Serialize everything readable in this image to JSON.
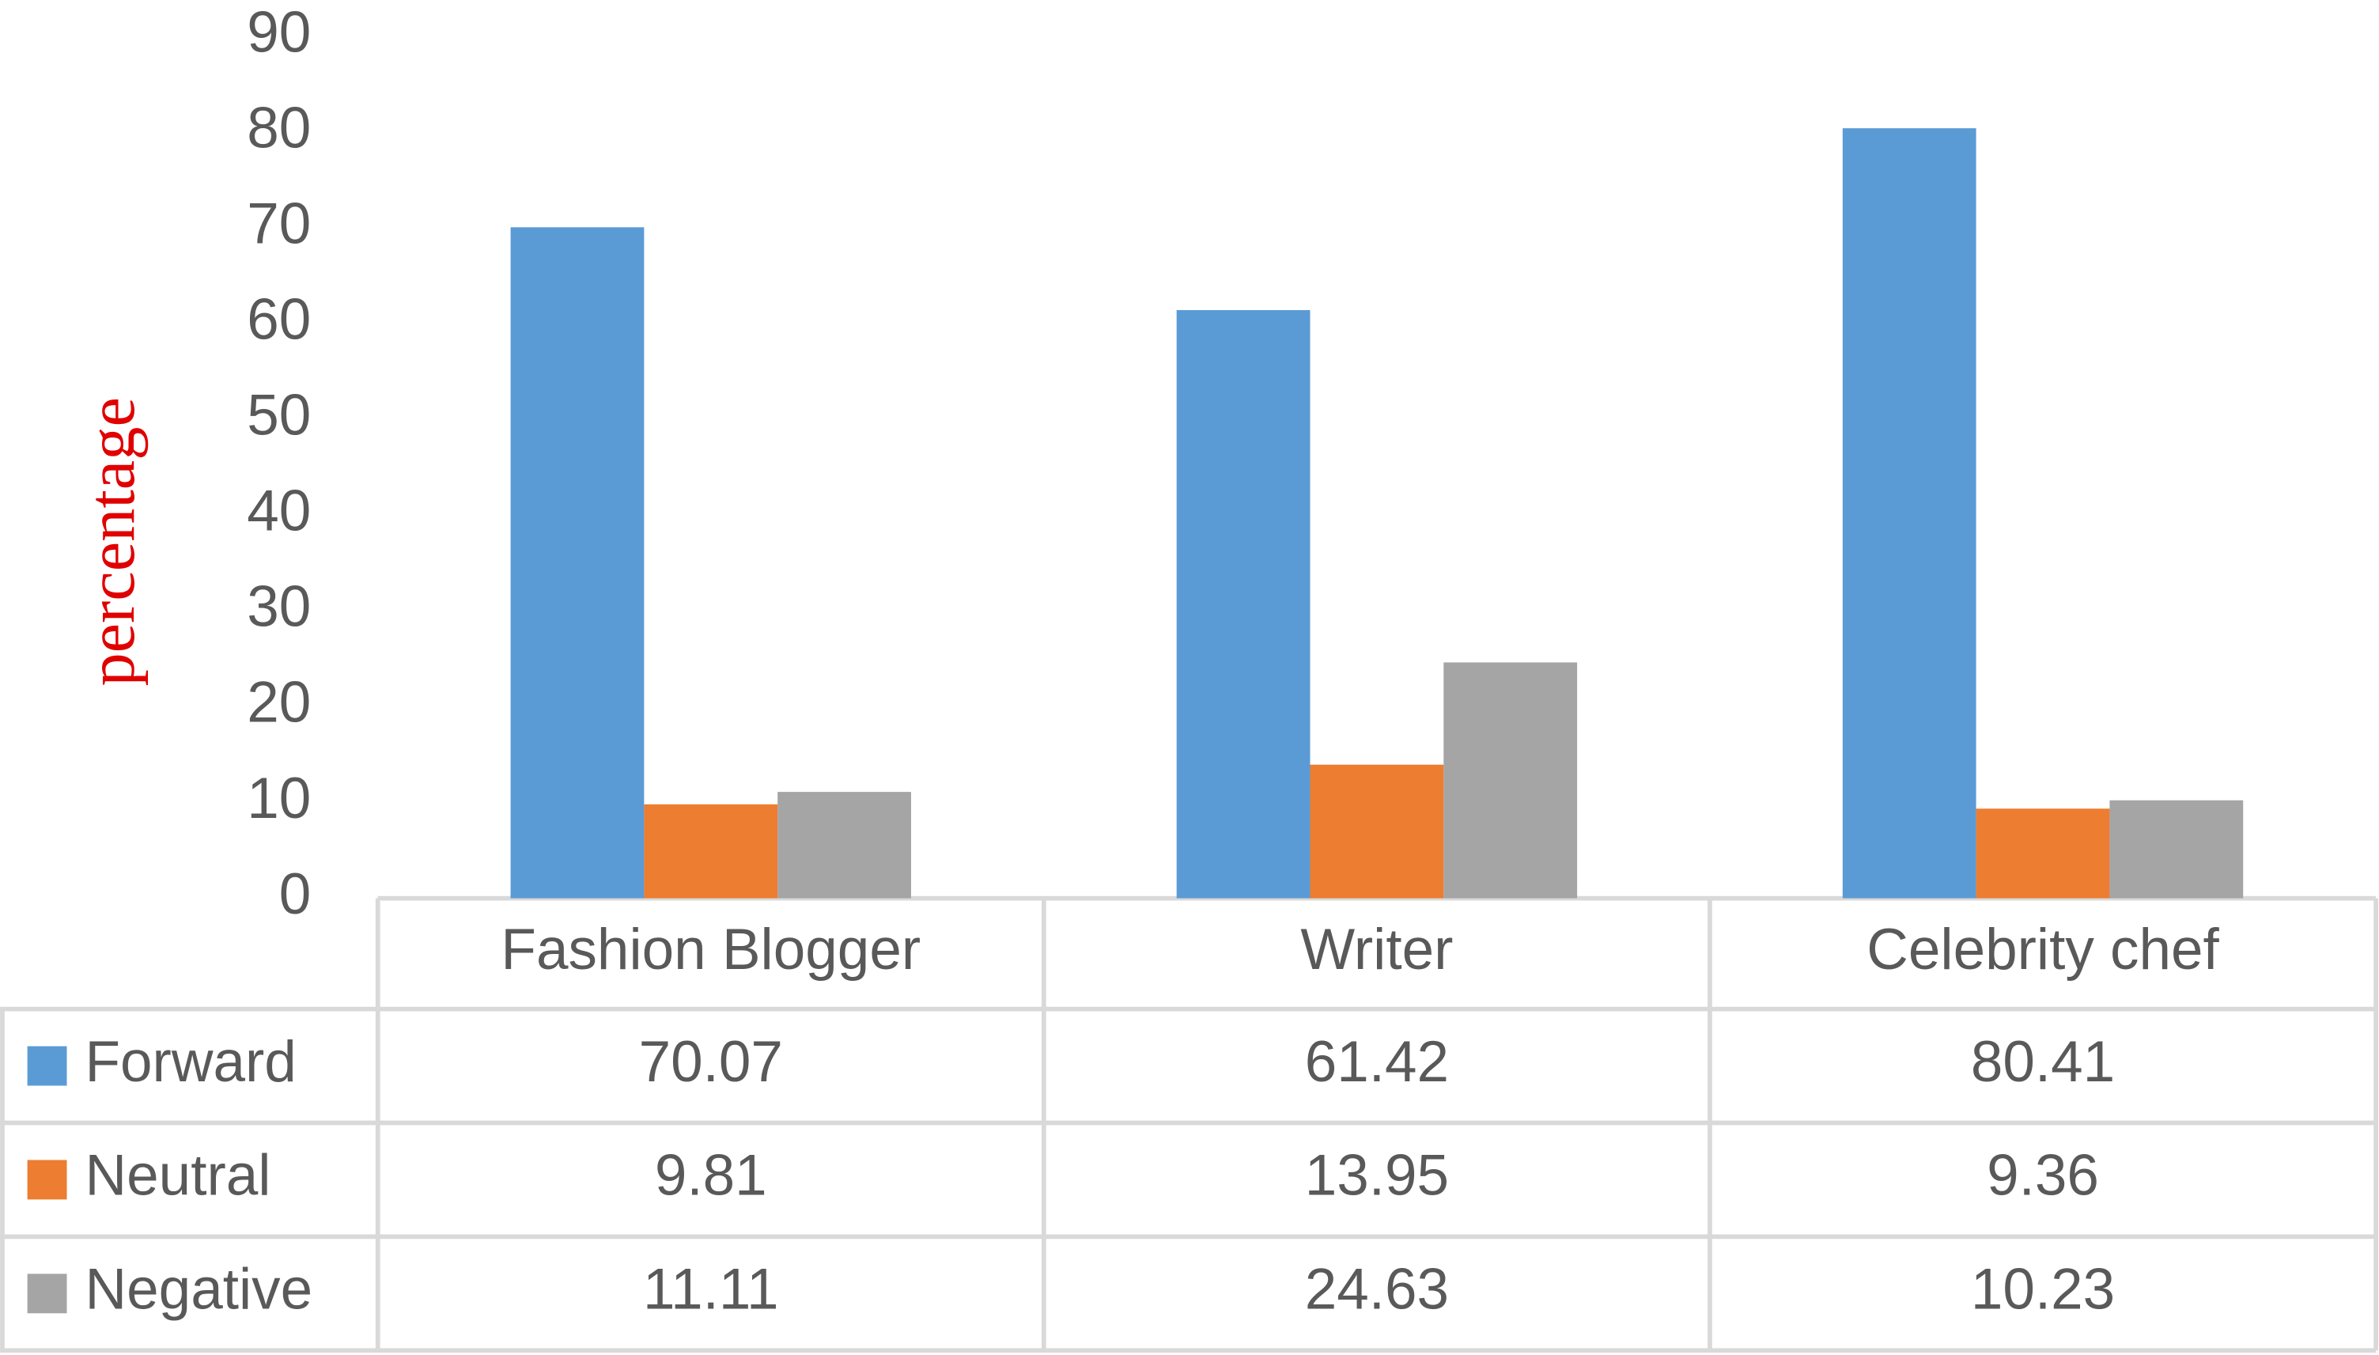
{
  "chart_data": {
    "type": "bar",
    "y_label": "percentage",
    "categories": [
      "Fashion Blogger",
      "Writer",
      "Celebrity chef"
    ],
    "series": [
      {
        "name": "Forward",
        "color": "#5b9bd5",
        "values": [
          70.07,
          61.42,
          80.41
        ]
      },
      {
        "name": "Neutral",
        "color": "#ed7d31",
        "values": [
          9.81,
          13.95,
          9.36
        ]
      },
      {
        "name": "Negative",
        "color": "#a5a5a5",
        "values": [
          11.11,
          24.63,
          10.23
        ]
      }
    ],
    "ylim": [
      0,
      90
    ],
    "yticks": [
      0,
      10,
      20,
      30,
      40,
      50,
      60,
      70,
      80,
      90
    ],
    "grid": false
  }
}
